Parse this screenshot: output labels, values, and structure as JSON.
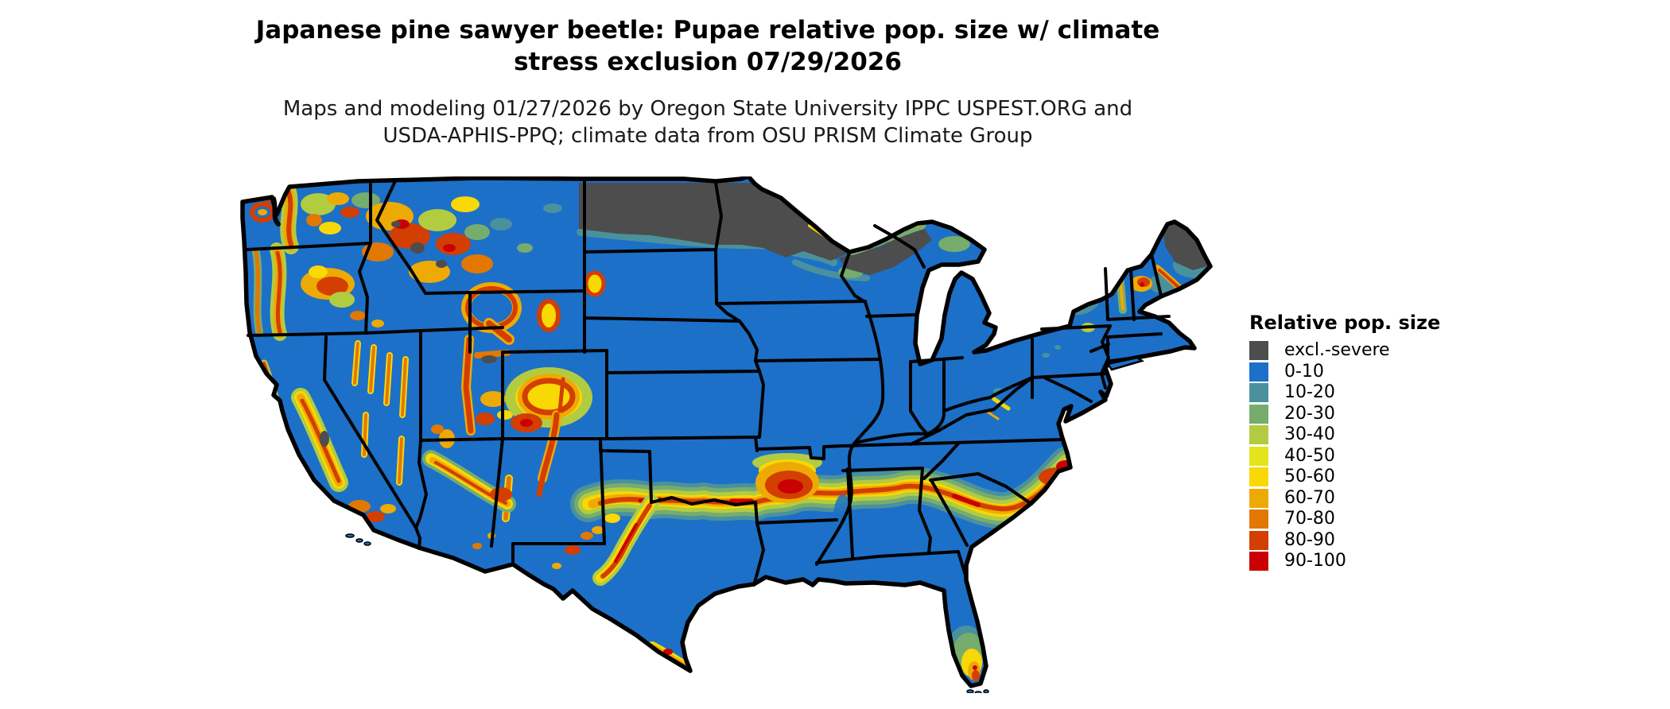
{
  "header": {
    "title_line1": "Japanese pine sawyer beetle: Pupae relative pop. size w/ climate",
    "title_line2": "stress exclusion 07/29/2026",
    "subtitle_line1": "Maps and modeling 01/27/2026 by Oregon State University IPPC USPEST.ORG and",
    "subtitle_line2": "USDA-APHIS-PPQ; climate data from OSU PRISM Climate Group"
  },
  "legend": {
    "title": "Relative pop. size",
    "items": [
      {
        "label": "excl.-severe",
        "color": "#4d4d4d"
      },
      {
        "label": "0-10",
        "color": "#1c70c8"
      },
      {
        "label": "10-20",
        "color": "#4a919d"
      },
      {
        "label": "20-30",
        "color": "#76ac6e"
      },
      {
        "label": "30-40",
        "color": "#b2cc41"
      },
      {
        "label": "40-50",
        "color": "#e3e41e"
      },
      {
        "label": "50-60",
        "color": "#f8d805"
      },
      {
        "label": "60-70",
        "color": "#eeaa04"
      },
      {
        "label": "70-80",
        "color": "#e27802"
      },
      {
        "label": "80-90",
        "color": "#d33e02"
      },
      {
        "label": "90-100",
        "color": "#ca0002"
      }
    ]
  },
  "map": {
    "colors": {
      "background": "#ffffff",
      "state_border": "#000000",
      "base_fill": "#1c70c8",
      "excluded_fill": "#4d4d4d"
    }
  }
}
